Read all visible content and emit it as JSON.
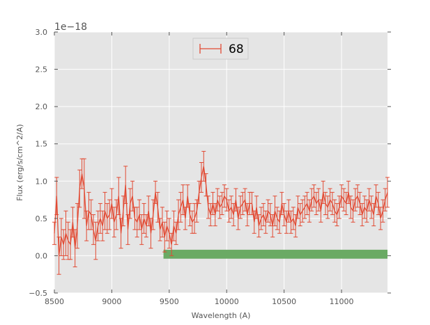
{
  "chart_data": {
    "type": "line",
    "title": "",
    "xlabel": "Wavelength (A)",
    "ylabel": "Flux (erg/s/cm^2/A)",
    "y_offset_label": "1e−18",
    "xlim": [
      8500,
      11400
    ],
    "ylim": [
      -0.5,
      3.0
    ],
    "x_ticks": [
      8500,
      9000,
      9500,
      10000,
      10500,
      11000
    ],
    "x_tick_labels": [
      "8500",
      "9000",
      "9500",
      "10000",
      "10500",
      "11000"
    ],
    "y_ticks": [
      -0.5,
      0.0,
      0.5,
      1.0,
      1.5,
      2.0,
      2.5,
      3.0
    ],
    "y_tick_labels": [
      "−0.5",
      "0.0",
      "0.5",
      "1.0",
      "1.5",
      "2.0",
      "2.5",
      "3.0"
    ],
    "grid": true,
    "background": "#e5e5e5",
    "series_color": "#e24a33",
    "band_color": "#6aaa64",
    "legend": {
      "entries": [
        "68"
      ],
      "placement": "upper-center"
    },
    "series": [
      {
        "name": "68",
        "x": [
          8500,
          8520,
          8540,
          8560,
          8580,
          8600,
          8620,
          8640,
          8660,
          8680,
          8700,
          8720,
          8740,
          8760,
          8780,
          8800,
          8820,
          8840,
          8860,
          8880,
          8900,
          8920,
          8940,
          8960,
          8980,
          9000,
          9020,
          9040,
          9060,
          9080,
          9100,
          9120,
          9140,
          9160,
          9180,
          9200,
          9220,
          9240,
          9260,
          9280,
          9300,
          9320,
          9340,
          9360,
          9380,
          9400,
          9420,
          9440,
          9460,
          9480,
          9500,
          9520,
          9540,
          9560,
          9580,
          9600,
          9620,
          9640,
          9660,
          9680,
          9700,
          9720,
          9740,
          9760,
          9780,
          9800,
          9820,
          9840,
          9860,
          9880,
          9900,
          9920,
          9940,
          9960,
          9980,
          10000,
          10020,
          10040,
          10060,
          10080,
          10100,
          10120,
          10140,
          10160,
          10180,
          10200,
          10220,
          10240,
          10260,
          10280,
          10300,
          10320,
          10340,
          10360,
          10380,
          10400,
          10420,
          10440,
          10460,
          10480,
          10500,
          10520,
          10540,
          10560,
          10580,
          10600,
          10620,
          10640,
          10660,
          10680,
          10700,
          10720,
          10740,
          10760,
          10780,
          10800,
          10820,
          10840,
          10860,
          10880,
          10900,
          10920,
          10940,
          10960,
          10980,
          11000,
          11020,
          11040,
          11060,
          11080,
          11100,
          11120,
          11140,
          11160,
          11180,
          11200,
          11220,
          11240,
          11260,
          11280,
          11300,
          11320,
          11340,
          11360,
          11380,
          11400
        ],
        "y": [
          0.3,
          0.8,
          0.0,
          0.25,
          0.15,
          0.3,
          0.2,
          0.15,
          0.45,
          0.1,
          0.4,
          0.9,
          1.1,
          0.9,
          0.4,
          0.6,
          0.55,
          0.35,
          0.2,
          0.4,
          0.5,
          0.4,
          0.6,
          0.5,
          0.55,
          0.7,
          0.45,
          0.55,
          0.8,
          0.3,
          0.6,
          0.95,
          0.35,
          0.7,
          0.8,
          0.5,
          0.45,
          0.55,
          0.35,
          0.5,
          0.4,
          0.6,
          0.3,
          0.55,
          0.85,
          0.65,
          0.35,
          0.45,
          0.25,
          0.4,
          0.3,
          0.15,
          0.4,
          0.3,
          0.55,
          0.65,
          0.75,
          0.5,
          0.8,
          0.55,
          0.45,
          0.5,
          0.6,
          0.85,
          1.05,
          1.2,
          0.95,
          0.65,
          0.55,
          0.7,
          0.55,
          0.75,
          0.65,
          0.7,
          0.8,
          0.75,
          0.6,
          0.65,
          0.55,
          0.75,
          0.5,
          0.65,
          0.7,
          0.75,
          0.55,
          0.7,
          0.7,
          0.45,
          0.65,
          0.4,
          0.5,
          0.55,
          0.45,
          0.6,
          0.55,
          0.4,
          0.6,
          0.5,
          0.45,
          0.7,
          0.55,
          0.45,
          0.6,
          0.45,
          0.5,
          0.4,
          0.65,
          0.55,
          0.6,
          0.65,
          0.7,
          0.6,
          0.75,
          0.8,
          0.7,
          0.75,
          0.6,
          0.85,
          0.7,
          0.65,
          0.75,
          0.7,
          0.6,
          0.55,
          0.65,
          0.8,
          0.75,
          0.7,
          0.85,
          0.65,
          0.6,
          0.75,
          0.8,
          0.7,
          0.55,
          0.65,
          0.6,
          0.75,
          0.65,
          0.55,
          0.8,
          0.7,
          0.5,
          0.6,
          0.75,
          0.85
        ],
        "yerr": [
          0.15,
          0.25,
          0.25,
          0.25,
          0.2,
          0.3,
          0.25,
          0.2,
          0.2,
          0.25,
          0.3,
          0.25,
          0.2,
          0.4,
          0.2,
          0.25,
          0.2,
          0.2,
          0.25,
          0.2,
          0.2,
          0.2,
          0.25,
          0.2,
          0.2,
          0.2,
          0.2,
          0.2,
          0.25,
          0.2,
          0.2,
          0.25,
          0.2,
          0.2,
          0.2,
          0.15,
          0.2,
          0.2,
          0.2,
          0.2,
          0.15,
          0.2,
          0.2,
          0.2,
          0.15,
          0.2,
          0.15,
          0.2,
          0.2,
          0.2,
          0.2,
          0.15,
          0.2,
          0.15,
          0.2,
          0.2,
          0.2,
          0.15,
          0.15,
          0.15,
          0.15,
          0.2,
          0.15,
          0.15,
          0.2,
          0.2,
          0.15,
          0.15,
          0.15,
          0.15,
          0.15,
          0.15,
          0.15,
          0.15,
          0.15,
          0.15,
          0.15,
          0.15,
          0.15,
          0.15,
          0.15,
          0.15,
          0.15,
          0.15,
          0.15,
          0.15,
          0.15,
          0.15,
          0.15,
          0.15,
          0.15,
          0.15,
          0.15,
          0.15,
          0.15,
          0.15,
          0.2,
          0.15,
          0.15,
          0.15,
          0.15,
          0.15,
          0.15,
          0.15,
          0.15,
          0.15,
          0.15,
          0.15,
          0.15,
          0.15,
          0.15,
          0.15,
          0.15,
          0.15,
          0.15,
          0.15,
          0.15,
          0.15,
          0.15,
          0.15,
          0.15,
          0.15,
          0.15,
          0.15,
          0.15,
          0.15,
          0.15,
          0.15,
          0.15,
          0.15,
          0.15,
          0.15,
          0.15,
          0.15,
          0.15,
          0.15,
          0.15,
          0.15,
          0.15,
          0.15,
          0.15,
          0.15,
          0.15,
          0.15,
          0.15,
          0.2
        ]
      }
    ],
    "band": {
      "x_start": 9450,
      "x_end": 11400,
      "y_low": -0.04,
      "y_high": 0.08
    }
  }
}
